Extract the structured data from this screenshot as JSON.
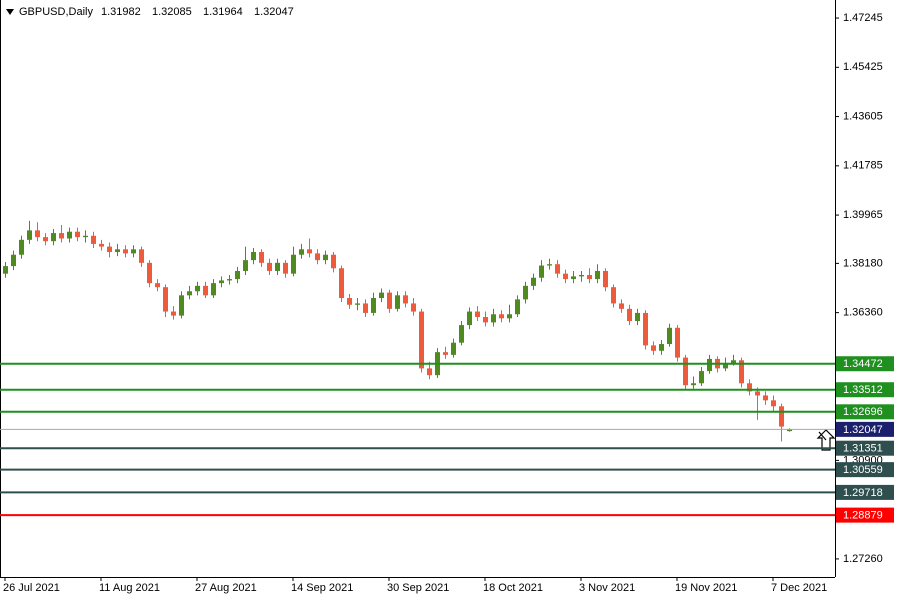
{
  "chart_data": {
    "type": "candlestick",
    "title": "GBPUSD,Daily",
    "categories": [
      "26 Jul 2021",
      null,
      null,
      null,
      null,
      null,
      null,
      null,
      null,
      null,
      null,
      null,
      "11 Aug 2021",
      null,
      null,
      null,
      null,
      null,
      null,
      null,
      null,
      null,
      null,
      null,
      "27 Aug 2021",
      null,
      null,
      null,
      null,
      null,
      null,
      null,
      null,
      null,
      null,
      null,
      "14 Sep 2021",
      null,
      null,
      null,
      null,
      null,
      null,
      null,
      null,
      null,
      null,
      null,
      "30 Sep 2021",
      null,
      null,
      null,
      null,
      null,
      null,
      null,
      null,
      null,
      null,
      null,
      "18 Oct 2021",
      null,
      null,
      null,
      null,
      null,
      null,
      null,
      null,
      null,
      null,
      null,
      "3 Nov 2021",
      null,
      null,
      null,
      null,
      null,
      null,
      null,
      null,
      null,
      null,
      null,
      "19 Nov 2021",
      null,
      null,
      null,
      null,
      null,
      null,
      null,
      null,
      null,
      null,
      null,
      "7 Dec 2021",
      null,
      null
    ],
    "open": [
      1.378,
      1.3808,
      1.385,
      1.3905,
      1.394,
      1.3915,
      1.39,
      1.393,
      1.391,
      1.3935,
      1.3915,
      1.392,
      1.389,
      1.388,
      1.386,
      1.387,
      1.3855,
      1.387,
      1.382,
      1.3745,
      1.373,
      1.364,
      1.3625,
      1.37,
      1.3715,
      1.3735,
      1.37,
      1.3745,
      1.3755,
      1.376,
      1.379,
      1.383,
      1.386,
      1.382,
      1.379,
      1.382,
      1.378,
      1.385,
      1.387,
      1.3855,
      1.383,
      1.385,
      1.38,
      1.369,
      1.3665,
      1.367,
      1.3635,
      1.369,
      1.371,
      1.365,
      1.37,
      1.367,
      1.364,
      1.343,
      1.3405,
      1.349,
      1.348,
      1.3525,
      1.359,
      1.364,
      1.362,
      1.36,
      1.363,
      1.3615,
      1.363,
      1.3685,
      1.3735,
      1.3765,
      1.381,
      1.3815,
      1.378,
      1.376,
      1.377,
      1.3775,
      1.376,
      1.379,
      1.373,
      1.367,
      1.365,
      1.3605,
      1.3635,
      1.3515,
      1.3495,
      1.352,
      1.358,
      1.347,
      1.3368,
      1.3375,
      1.342,
      1.3465,
      1.343,
      1.345,
      1.346,
      1.3375,
      1.3345,
      1.333,
      1.3312,
      1.329,
      1.31982
    ],
    "high": [
      1.3823,
      1.3865,
      1.392,
      1.3975,
      1.397,
      1.393,
      1.3945,
      1.396,
      1.395,
      1.395,
      1.394,
      1.3935,
      1.3905,
      1.3895,
      1.389,
      1.3885,
      1.3885,
      1.388,
      1.383,
      1.376,
      1.374,
      1.366,
      1.3715,
      1.3735,
      1.375,
      1.375,
      1.376,
      1.377,
      1.3775,
      1.3805,
      1.388,
      1.3875,
      1.387,
      1.3835,
      1.3835,
      1.383,
      1.388,
      1.389,
      1.391,
      1.387,
      1.3865,
      1.386,
      1.381,
      1.3705,
      1.369,
      1.3685,
      1.371,
      1.3725,
      1.372,
      1.3715,
      1.3715,
      1.369,
      1.365,
      1.3455,
      1.3505,
      1.351,
      1.354,
      1.3605,
      1.3655,
      1.366,
      1.364,
      1.365,
      1.3645,
      1.3665,
      1.37,
      1.375,
      1.378,
      1.383,
      1.3835,
      1.383,
      1.3795,
      1.379,
      1.379,
      1.38,
      1.3815,
      1.38,
      1.374,
      1.3685,
      1.3665,
      1.365,
      1.3645,
      1.353,
      1.3535,
      1.3595,
      1.359,
      1.348,
      1.34,
      1.3435,
      1.348,
      1.3475,
      1.347,
      1.348,
      1.347,
      1.339,
      1.336,
      1.3345,
      1.333,
      1.33,
      1.32085
    ],
    "low": [
      1.3765,
      1.3793,
      1.3835,
      1.389,
      1.39,
      1.3885,
      1.3885,
      1.3895,
      1.3895,
      1.39,
      1.3895,
      1.3875,
      1.3865,
      1.384,
      1.3845,
      1.384,
      1.384,
      1.3805,
      1.373,
      1.3715,
      1.362,
      1.361,
      1.3615,
      1.3685,
      1.37,
      1.369,
      1.369,
      1.373,
      1.374,
      1.3745,
      1.3775,
      1.3815,
      1.3805,
      1.3775,
      1.3775,
      1.3765,
      1.377,
      1.3835,
      1.384,
      1.3815,
      1.3815,
      1.3785,
      1.3675,
      1.365,
      1.3645,
      1.362,
      1.3625,
      1.3675,
      1.3635,
      1.364,
      1.3655,
      1.3625,
      1.3415,
      1.339,
      1.3395,
      1.3465,
      1.347,
      1.3515,
      1.3575,
      1.3605,
      1.3585,
      1.3585,
      1.36,
      1.36,
      1.362,
      1.367,
      1.372,
      1.375,
      1.3795,
      1.3765,
      1.3745,
      1.3745,
      1.375,
      1.3745,
      1.3745,
      1.3715,
      1.3655,
      1.3635,
      1.359,
      1.359,
      1.35,
      1.348,
      1.348,
      1.351,
      1.3455,
      1.335,
      1.3355,
      1.3365,
      1.341,
      1.3415,
      1.342,
      1.344,
      1.336,
      1.333,
      1.324,
      1.3295,
      1.327,
      1.316,
      1.31964
    ],
    "close": [
      1.3808,
      1.385,
      1.3905,
      1.394,
      1.3915,
      1.39,
      1.393,
      1.391,
      1.3935,
      1.3915,
      1.392,
      1.389,
      1.388,
      1.386,
      1.387,
      1.3855,
      1.387,
      1.382,
      1.3745,
      1.373,
      1.364,
      1.3625,
      1.37,
      1.3715,
      1.3735,
      1.37,
      1.3745,
      1.3755,
      1.376,
      1.379,
      1.383,
      1.386,
      1.382,
      1.379,
      1.382,
      1.378,
      1.385,
      1.387,
      1.3855,
      1.383,
      1.385,
      1.38,
      1.369,
      1.3665,
      1.367,
      1.3635,
      1.369,
      1.371,
      1.365,
      1.37,
      1.367,
      1.364,
      1.343,
      1.3405,
      1.349,
      1.348,
      1.3525,
      1.359,
      1.364,
      1.362,
      1.36,
      1.363,
      1.3615,
      1.363,
      1.3685,
      1.3735,
      1.3765,
      1.381,
      1.3815,
      1.378,
      1.376,
      1.377,
      1.3775,
      1.376,
      1.379,
      1.373,
      1.367,
      1.365,
      1.3605,
      1.3635,
      1.3515,
      1.3495,
      1.352,
      1.358,
      1.347,
      1.3368,
      1.3375,
      1.342,
      1.3465,
      1.343,
      1.345,
      1.346,
      1.3375,
      1.3345,
      1.333,
      1.3312,
      1.329,
      1.3215,
      1.32047
    ],
    "up_color": "#4e8a1f",
    "down_color": "#ee5a3c",
    "ylim": [
      1.26592,
      1.47912
    ],
    "yticks": [
      1.47245,
      1.45425,
      1.43605,
      1.41785,
      1.39965,
      {
        "value": 1.3818,
        "label": "1.38180"
      },
      {
        "value": 1.3636,
        "label": "1.36360"
      },
      {
        "value": 1.309,
        "label": "1.30900"
      },
      {
        "value": 1.2726,
        "label": "1.27260"
      }
    ],
    "levels": [
      {
        "value": 1.34472,
        "color": "#1f8f1f"
      },
      {
        "value": 1.33512,
        "color": "#1f8f1f"
      },
      {
        "value": 1.32696,
        "color": "#1f8f1f"
      },
      {
        "value": 1.31351,
        "color": "#2f4f4f"
      },
      {
        "value": 1.30559,
        "color": "#2f4f4f"
      },
      {
        "value": 1.29718,
        "color": "#2f4f4f"
      },
      {
        "value": 1.28879,
        "color": "#ff0000"
      }
    ],
    "current_color": "#1c1f6b"
  }
}
